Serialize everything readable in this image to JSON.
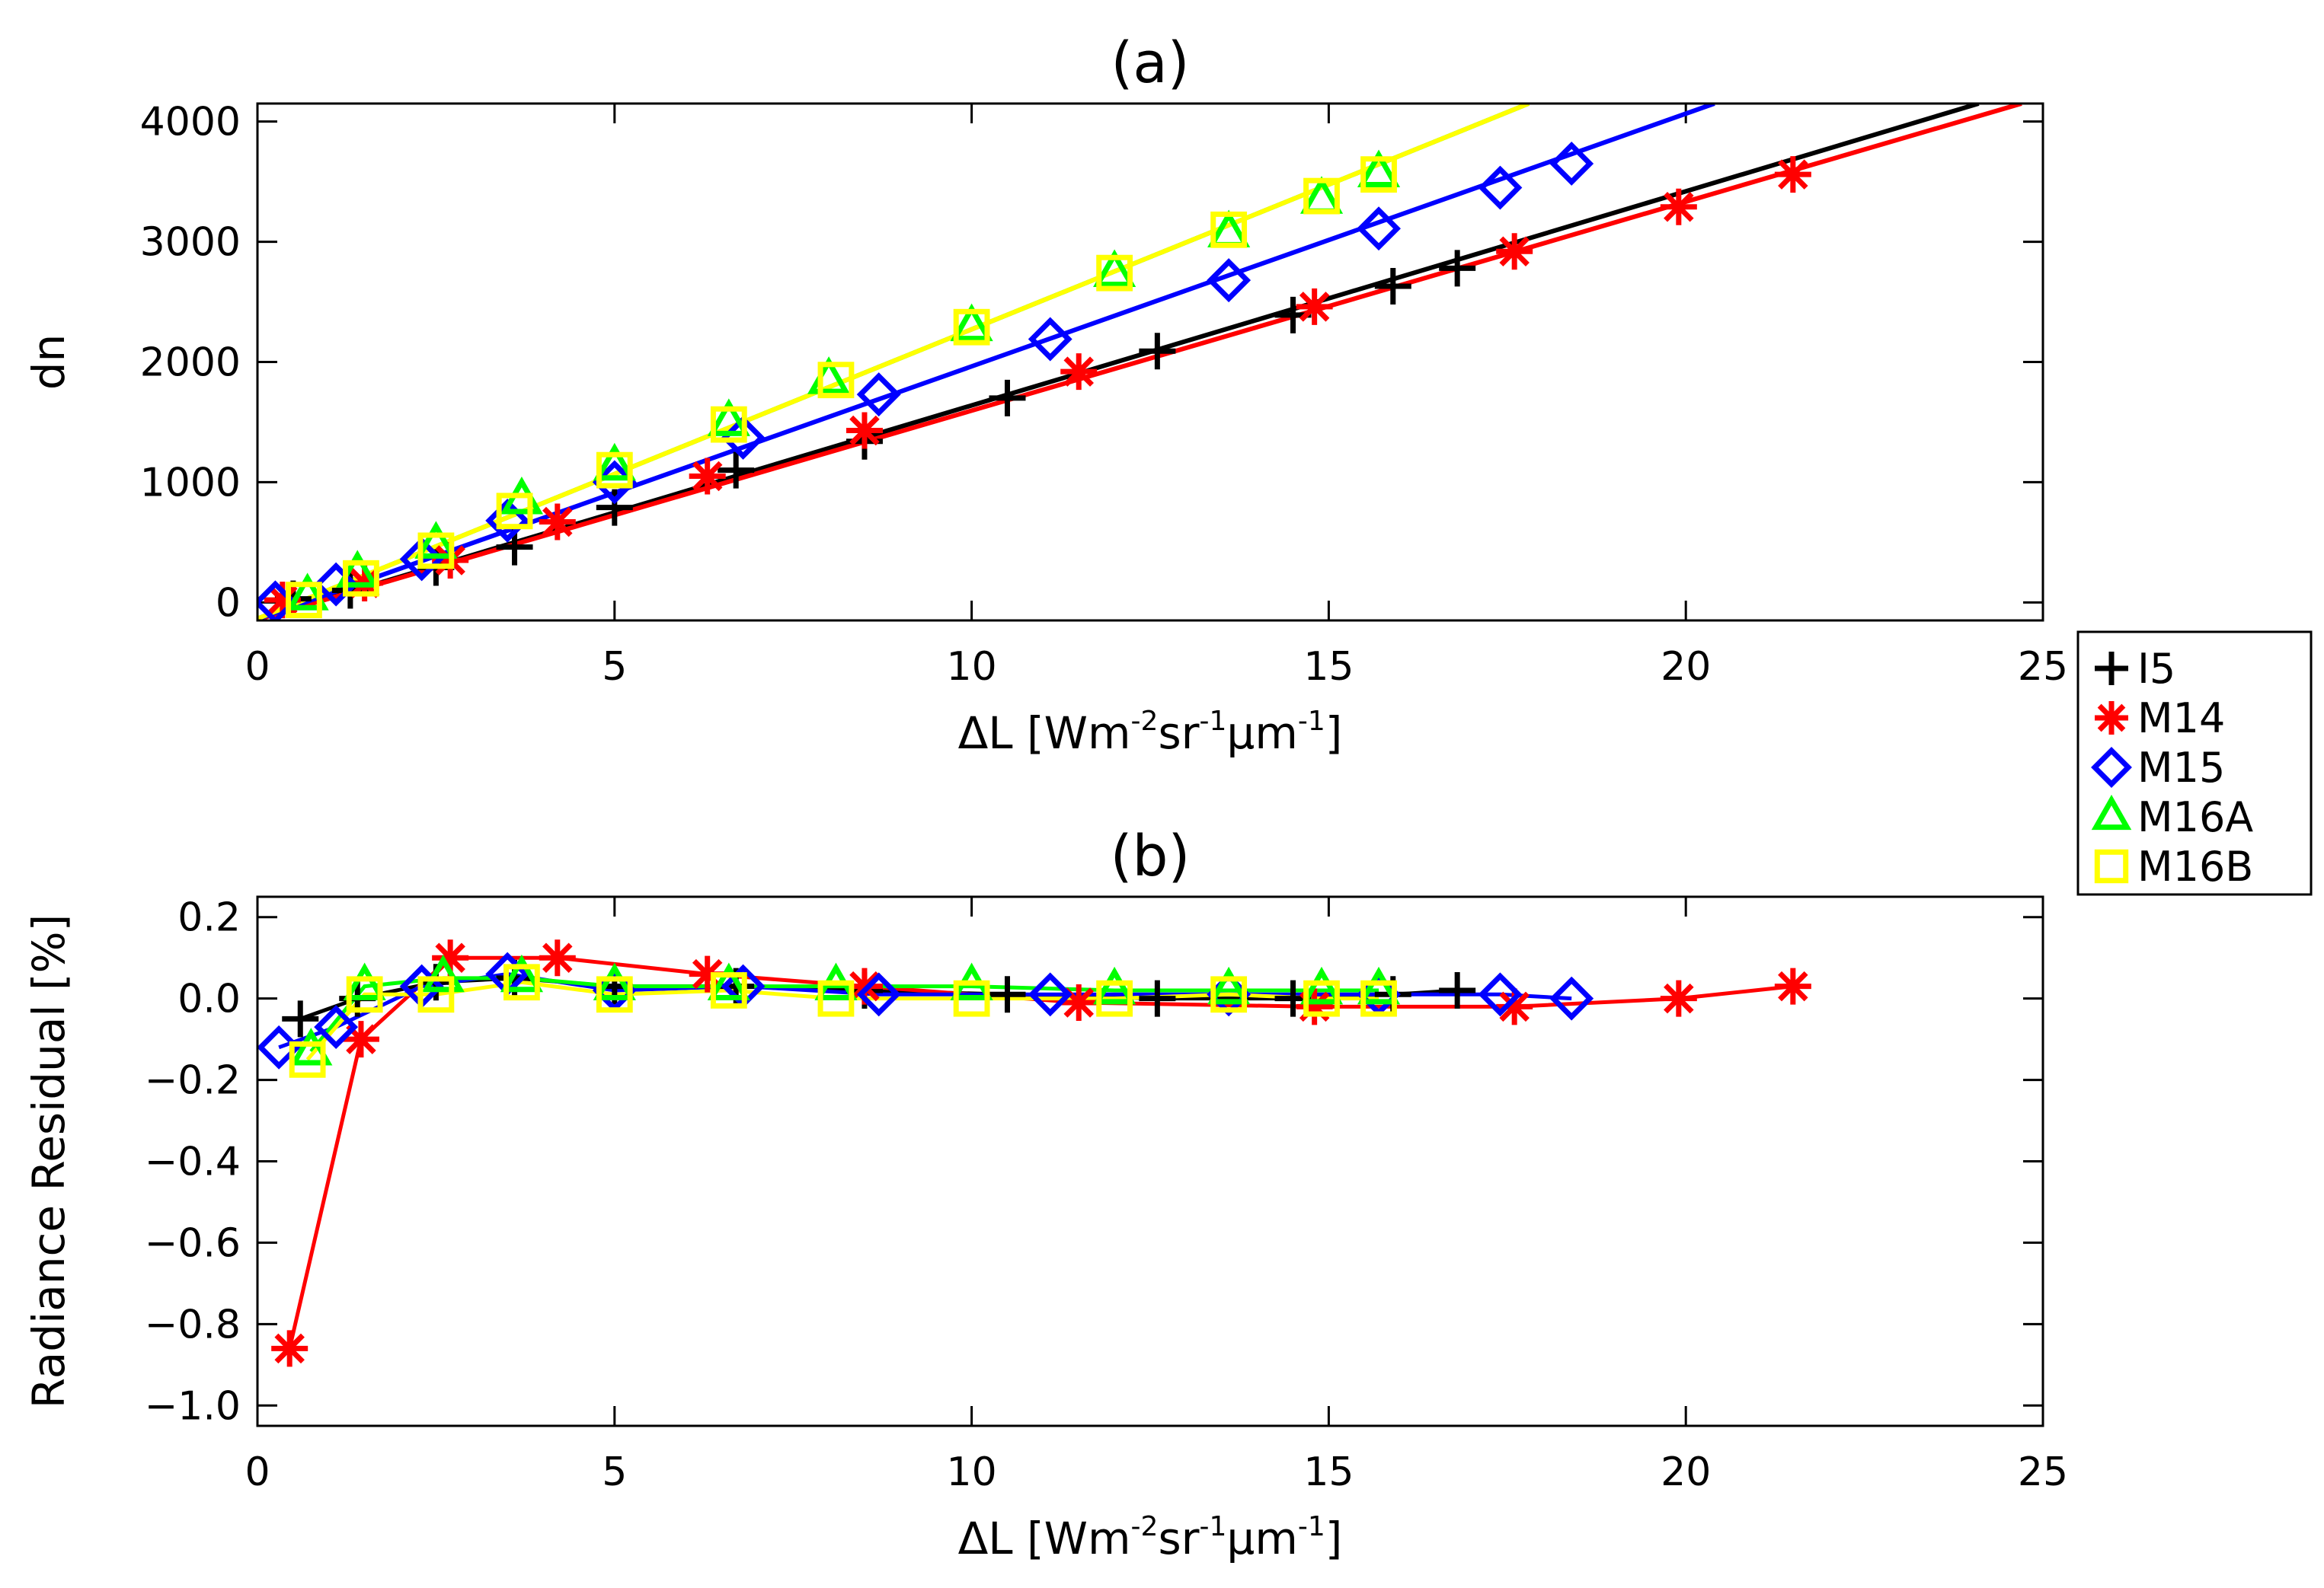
{
  "chart_data": [
    {
      "type": "scatter",
      "title": "(a)",
      "xlabel_text": "ΔL",
      "xlabel_units": [
        "[Wm",
        "-2",
        "sr",
        "-1",
        "μm",
        "-1",
        "]"
      ],
      "ylabel": "dn",
      "xlim": [
        0,
        25
      ],
      "ylim": [
        -150,
        4150
      ],
      "xticks": [
        0,
        5,
        10,
        15,
        20,
        25
      ],
      "xtick_labels": [
        "0",
        "5",
        "10",
        "15",
        "20",
        "25"
      ],
      "yticks": [
        0,
        1000,
        2000,
        3000,
        4000
      ],
      "ytick_labels": [
        "0",
        "1000",
        "2000",
        "3000",
        "4000"
      ],
      "series": [
        {
          "name": "I5",
          "color": "#000000",
          "marker": "plus",
          "x": [
            0.5,
            1.3,
            2.5,
            3.6,
            5.0,
            6.7,
            8.5,
            10.5,
            12.6,
            14.5,
            15.9,
            16.8
          ],
          "y": [
            30,
            100,
            290,
            460,
            790,
            1100,
            1340,
            1700,
            2090,
            2390,
            2630,
            2780
          ],
          "fit": [
            [
              -0.1,
              -160
            ],
            [
              24.1,
              4150
            ]
          ]
        },
        {
          "name": "M14",
          "color": "#ff0000",
          "marker": "asterisk",
          "x": [
            0.35,
            1.5,
            2.7,
            4.2,
            6.3,
            8.5,
            11.5,
            14.8,
            17.6,
            19.9,
            21.5
          ],
          "y": [
            20,
            160,
            350,
            670,
            1050,
            1430,
            1920,
            2460,
            2920,
            3290,
            3560
          ],
          "fit": [
            [
              -0.1,
              -160
            ],
            [
              24.7,
              4150
            ]
          ]
        },
        {
          "name": "M15",
          "color": "#0000ff",
          "marker": "diamond",
          "x": [
            0.25,
            1.1,
            2.3,
            3.5,
            5.0,
            6.8,
            8.7,
            11.1,
            13.6,
            15.7,
            17.4,
            18.4
          ],
          "y": [
            0,
            150,
            360,
            680,
            1000,
            1370,
            1730,
            2190,
            2680,
            3110,
            3450,
            3650
          ],
          "fit": [
            [
              -0.1,
              -160
            ],
            [
              20.4,
              4150
            ]
          ]
        },
        {
          "name": "M16A",
          "color": "#00ff00",
          "marker": "triangle",
          "x": [
            0.7,
            1.4,
            2.5,
            3.7,
            5.0,
            6.6,
            8.0,
            10.0,
            12.0,
            13.6,
            14.9,
            15.7
          ],
          "y": [
            50,
            240,
            480,
            850,
            1130,
            1500,
            1850,
            2290,
            2740,
            3070,
            3350,
            3570
          ],
          "fit": [
            [
              -0.1,
              -160
            ],
            [
              17.8,
              4150
            ]
          ]
        },
        {
          "name": "M16B",
          "color": "#ffff00",
          "marker": "square",
          "x": [
            0.65,
            1.45,
            2.5,
            3.6,
            5.0,
            6.6,
            8.1,
            10.0,
            12.0,
            13.6,
            14.9,
            15.7
          ],
          "y": [
            20,
            200,
            430,
            760,
            1100,
            1480,
            1850,
            2290,
            2740,
            3100,
            3380,
            3560
          ],
          "fit": [
            [
              -0.1,
              -160
            ],
            [
              17.8,
              4150
            ]
          ]
        }
      ]
    },
    {
      "type": "line",
      "title": "(b)",
      "xlabel_text": "ΔL",
      "xlabel_units": [
        "[Wm",
        "-2",
        "sr",
        "-1",
        "μm",
        "-1",
        "]"
      ],
      "ylabel": "Radiance Residual [%]",
      "xlim": [
        0,
        25
      ],
      "ylim": [
        -1.05,
        0.25
      ],
      "xticks": [
        0,
        5,
        10,
        15,
        20,
        25
      ],
      "xtick_labels": [
        "0",
        "5",
        "10",
        "15",
        "20",
        "25"
      ],
      "yticks": [
        0.2,
        0.0,
        -0.2,
        -0.4,
        -0.6,
        -0.8,
        -1.0
      ],
      "ytick_labels": [
        "0.2",
        "0.0",
        "−0.2",
        "−0.4",
        "−0.6",
        "−0.8",
        "−1.0"
      ],
      "series": [
        {
          "name": "I5",
          "color": "#000000",
          "marker": "plus",
          "x": [
            0.6,
            1.4,
            2.5,
            3.6,
            5.0,
            6.7,
            8.5,
            10.5,
            12.6,
            14.5,
            15.9,
            16.8
          ],
          "y": [
            -0.05,
            0.0,
            0.04,
            0.05,
            0.03,
            0.03,
            0.02,
            0.01,
            0.0,
            0.0,
            0.01,
            0.02
          ]
        },
        {
          "name": "M14",
          "color": "#ff0000",
          "marker": "asterisk",
          "x": [
            0.45,
            1.45,
            2.7,
            4.2,
            6.3,
            8.5,
            11.5,
            14.8,
            17.6,
            19.9,
            21.5
          ],
          "y": [
            -0.86,
            -0.1,
            0.1,
            0.1,
            0.06,
            0.03,
            -0.01,
            -0.02,
            -0.02,
            0.0,
            0.03
          ]
        },
        {
          "name": "M15",
          "color": "#0000ff",
          "marker": "diamond",
          "x": [
            0.3,
            1.1,
            2.3,
            3.5,
            5.0,
            6.8,
            8.7,
            11.1,
            13.6,
            15.7,
            17.4,
            18.4
          ],
          "y": [
            -0.12,
            -0.07,
            0.03,
            0.06,
            0.02,
            0.03,
            0.01,
            0.01,
            0.01,
            0.01,
            0.01,
            0.0
          ]
        },
        {
          "name": "M16A",
          "color": "#00ff00",
          "marker": "triangle",
          "x": [
            0.75,
            1.5,
            2.6,
            3.7,
            5.0,
            6.6,
            8.1,
            10.0,
            12.0,
            13.6,
            14.9,
            15.7
          ],
          "y": [
            -0.13,
            0.03,
            0.05,
            0.05,
            0.03,
            0.03,
            0.03,
            0.03,
            0.02,
            0.02,
            0.02,
            0.02
          ]
        },
        {
          "name": "M16B",
          "color": "#ffff00",
          "marker": "square",
          "x": [
            0.7,
            1.5,
            2.5,
            3.7,
            5.0,
            6.6,
            8.1,
            10.0,
            12.0,
            13.6,
            14.9,
            15.7
          ],
          "y": [
            -0.15,
            0.01,
            0.01,
            0.04,
            0.01,
            0.02,
            0.0,
            0.0,
            0.0,
            0.01,
            0.0,
            0.0
          ]
        }
      ]
    }
  ],
  "legend": [
    "I5",
    "M14",
    "M15",
    "M16A",
    "M16B"
  ]
}
